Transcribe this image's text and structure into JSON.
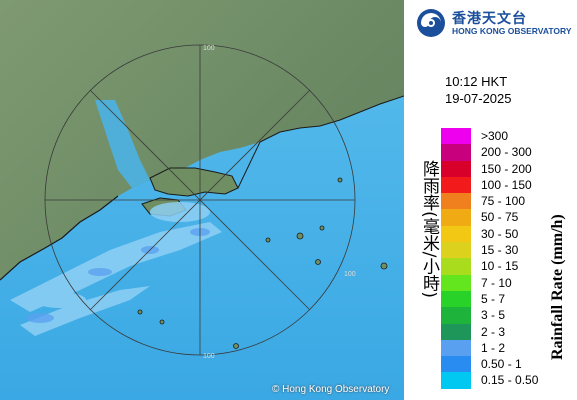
{
  "organization": {
    "name_zh": "香港天文台",
    "name_en": "HONG KONG OBSERVATORY"
  },
  "timestamp": {
    "time": "10:12 HKT",
    "date": "19-07-2025"
  },
  "legend": {
    "title_zh": "降雨率(毫米/小時)",
    "title_en": "Rainfall Rate (mm/h)",
    "items": [
      {
        "label": ">300",
        "color": "#ee00ee"
      },
      {
        "label": "200 - 300",
        "color": "#c8007e"
      },
      {
        "label": "150 - 200",
        "color": "#d8002a"
      },
      {
        "label": "100 - 150",
        "color": "#f21a1a"
      },
      {
        "label": "75 - 100",
        "color": "#f0801e"
      },
      {
        "label": "50 - 75",
        "color": "#f0aa14"
      },
      {
        "label": "30 - 50",
        "color": "#f2c814"
      },
      {
        "label": "15 - 30",
        "color": "#dcd21e"
      },
      {
        "label": "10 - 15",
        "color": "#aadc1e"
      },
      {
        "label": "7 - 10",
        "color": "#64e61e"
      },
      {
        "label": "5 - 7",
        "color": "#28d228"
      },
      {
        "label": "3 - 5",
        "color": "#1eb43c"
      },
      {
        "label": "2 - 3",
        "color": "#1e965a"
      },
      {
        "label": "1 - 2",
        "color": "#5aa0f0"
      },
      {
        "label": "0.50 - 1",
        "color": "#288cf0"
      },
      {
        "label": "0.15 - 0.50",
        "color": "#00c8f0"
      }
    ]
  },
  "map": {
    "copyright": "© Hong Kong Observatory",
    "range_ring_label": "100"
  }
}
